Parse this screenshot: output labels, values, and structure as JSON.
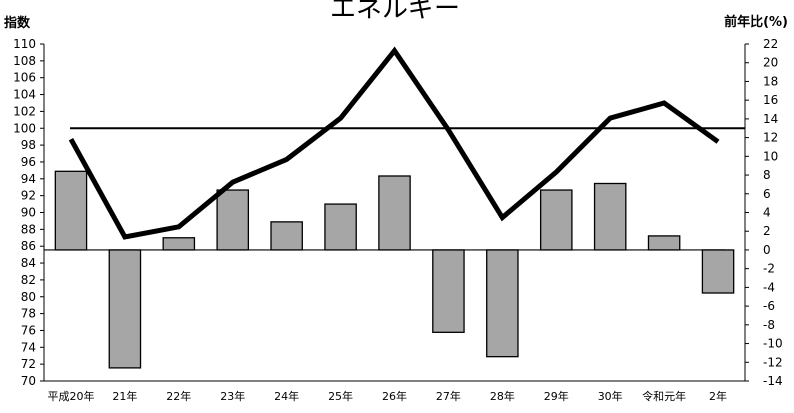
{
  "chart_data": {
    "type": "bar+line",
    "title": "エネルギー",
    "ylabel_left": "指数",
    "ylabel_right": "前年比(%)",
    "categories": [
      "平成20年",
      "21年",
      "22年",
      "23年",
      "24年",
      "25年",
      "26年",
      "27年",
      "28年",
      "29年",
      "30年",
      "令和元年",
      "2年"
    ],
    "left_axis": {
      "min": 70,
      "max": 110,
      "step": 2
    },
    "right_axis": {
      "min": -14,
      "max": 22,
      "step": 2
    },
    "reference_line": 100,
    "series": [
      {
        "axis": "right",
        "kind": "bar",
        "values": [
          8.4,
          -12.6,
          1.3,
          6.4,
          3.0,
          4.9,
          7.9,
          -8.8,
          -11.4,
          6.4,
          7.1,
          1.5,
          -4.6
        ]
      },
      {
        "axis": "left",
        "kind": "line",
        "values": [
          98.7,
          87.1,
          88.3,
          93.6,
          96.3,
          101.2,
          109.2,
          99.8,
          89.4,
          94.8,
          101.2,
          103.0,
          98.4
        ]
      }
    ],
    "colors": {
      "bar_fill": "#a6a6a6",
      "bar_stroke": "#000000",
      "line": "#000000",
      "reference": "#000000"
    }
  }
}
